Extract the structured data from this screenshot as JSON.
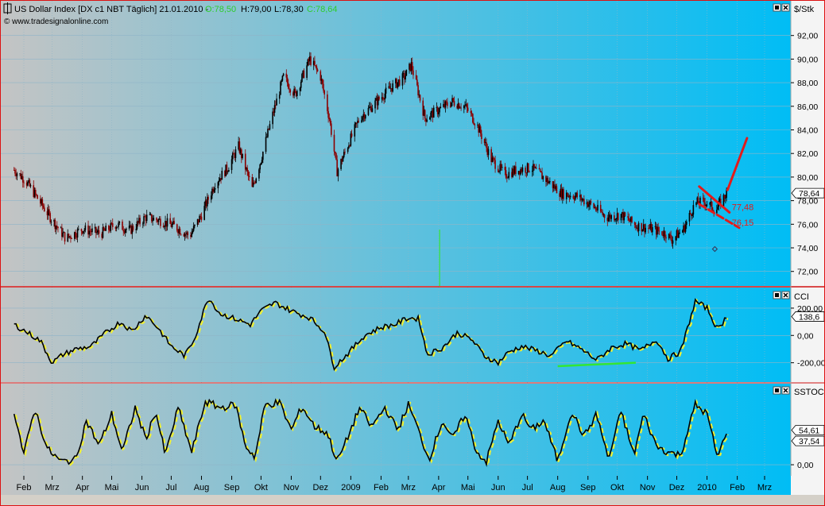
{
  "header": {
    "instrument": "US Dollar Index [DX c1 NBT  Täglich] 21.01.2010 -",
    "open": "O:78,50",
    "high": "H:79,00",
    "low": "L:78,30",
    "close": "C:78,64",
    "site": "© www.tradesignalonline.com"
  },
  "colors": {
    "panel_left": "#c4c4c4",
    "panel_right": "#00bdf5",
    "candle_up": "#000000",
    "candle_down": "#8b0000",
    "osc_line": "#000000",
    "osc_signal": "#f0f030",
    "annotation": "#e31b1b",
    "divergence": "#33e633",
    "panel_border": "#d11111",
    "grid": "#8fb5c8"
  },
  "chart_data": [
    {
      "name": "price",
      "type": "candlestick",
      "unit_label": "$/Stk",
      "ylim": [
        70.8,
        94
      ],
      "yticks": [
        72,
        74,
        76,
        78,
        80,
        82,
        84,
        86,
        88,
        90,
        92
      ],
      "ytick_labels": [
        "72,00",
        "74,00",
        "76,00",
        "78,00",
        "80,00",
        "82,00",
        "84,00",
        "86,00",
        "88,00",
        "90,00",
        "92,00"
      ],
      "last_value": 78.64,
      "last_label": "78,64",
      "close_path": [
        [
          "2008-01-22",
          80.6
        ],
        [
          "2008-02-02",
          79.8
        ],
        [
          "2008-02-15",
          78.2
        ],
        [
          "2008-02-28",
          76.6
        ],
        [
          "2008-03-15",
          74.8
        ],
        [
          "2008-04-01",
          75.6
        ],
        [
          "2008-04-20",
          75.2
        ],
        [
          "2008-05-05",
          76.0
        ],
        [
          "2008-05-20",
          75.5
        ],
        [
          "2008-06-05",
          76.6
        ],
        [
          "2008-06-20",
          76.3
        ],
        [
          "2008-07-05",
          75.8
        ],
        [
          "2008-07-20",
          75.0
        ],
        [
          "2008-08-01",
          76.8
        ],
        [
          "2008-08-15",
          79.5
        ],
        [
          "2008-08-28",
          80.8
        ],
        [
          "2008-09-08",
          82.6
        ],
        [
          "2008-09-22",
          79.0
        ],
        [
          "2008-10-01",
          81.5
        ],
        [
          "2008-10-12",
          85.0
        ],
        [
          "2008-10-24",
          88.5
        ],
        [
          "2008-11-05",
          87.0
        ],
        [
          "2008-11-20",
          90.0
        ],
        [
          "2008-12-01",
          88.5
        ],
        [
          "2008-12-10",
          85.0
        ],
        [
          "2008-12-18",
          80.5
        ],
        [
          "2008-12-28",
          82.5
        ],
        [
          "2009-01-10",
          85.0
        ],
        [
          "2009-01-25",
          86.2
        ],
        [
          "2009-02-10",
          87.5
        ],
        [
          "2009-02-25",
          88.5
        ],
        [
          "2009-03-04",
          89.5
        ],
        [
          "2009-03-18",
          85.0
        ],
        [
          "2009-03-30",
          85.6
        ],
        [
          "2009-04-15",
          86.4
        ],
        [
          "2009-04-28",
          86.0
        ],
        [
          "2009-05-10",
          84.5
        ],
        [
          "2009-05-25",
          81.5
        ],
        [
          "2009-06-08",
          80.2
        ],
        [
          "2009-06-20",
          80.6
        ],
        [
          "2009-07-05",
          80.8
        ],
        [
          "2009-07-20",
          79.8
        ],
        [
          "2009-08-05",
          78.6
        ],
        [
          "2009-08-20",
          78.4
        ],
        [
          "2009-09-05",
          77.6
        ],
        [
          "2009-09-20",
          76.6
        ],
        [
          "2009-10-05",
          76.8
        ],
        [
          "2009-10-20",
          75.9
        ],
        [
          "2009-11-05",
          75.6
        ],
        [
          "2009-11-20",
          75.2
        ],
        [
          "2009-11-26",
          74.7
        ],
        [
          "2009-12-08",
          75.6
        ],
        [
          "2009-12-20",
          77.8
        ],
        [
          "2009-12-30",
          77.9
        ],
        [
          "2010-01-10",
          77.2
        ],
        [
          "2010-01-21",
          78.64
        ]
      ],
      "annotations": [
        {
          "type": "label",
          "date": "2010-01-28",
          "value": 77.48,
          "text": "77,48"
        },
        {
          "type": "label",
          "date": "2010-01-28",
          "value": 76.15,
          "text": "76,15"
        },
        {
          "type": "trendline",
          "from": [
            "2009-12-24",
            79.2
          ],
          "to": [
            "2010-01-24",
            77.0
          ]
        },
        {
          "type": "trendline",
          "from": [
            "2009-12-24",
            77.7
          ],
          "to": [
            "2010-02-03",
            75.7
          ]
        },
        {
          "type": "trendline",
          "from": [
            "2010-01-22",
            78.9
          ],
          "to": [
            "2010-02-11",
            83.3
          ]
        },
        {
          "type": "marker",
          "date": "2010-01-09",
          "value": 73.9
        }
      ],
      "vertical_line": {
        "date": "2009-04-02"
      }
    },
    {
      "name": "cci",
      "type": "line",
      "label": "CCI",
      "ylim": [
        -330,
        310
      ],
      "yticks": [
        -200,
        0,
        200
      ],
      "ytick_labels": [
        "-200,00",
        "0,00",
        "200,00"
      ],
      "last_value": 138.6,
      "last_label": "138,6",
      "series": [
        [
          "2008-01-22",
          80
        ],
        [
          "2008-02-05",
          20
        ],
        [
          "2008-02-18",
          -40
        ],
        [
          "2008-03-01",
          -200
        ],
        [
          "2008-03-12",
          -140
        ],
        [
          "2008-03-25",
          -100
        ],
        [
          "2008-04-10",
          -80
        ],
        [
          "2008-04-25",
          20
        ],
        [
          "2008-05-10",
          100
        ],
        [
          "2008-05-22",
          30
        ],
        [
          "2008-06-05",
          150
        ],
        [
          "2008-06-18",
          50
        ],
        [
          "2008-07-01",
          -80
        ],
        [
          "2008-07-15",
          -150
        ],
        [
          "2008-07-25",
          -20
        ],
        [
          "2008-08-08",
          280
        ],
        [
          "2008-08-20",
          160
        ],
        [
          "2008-09-05",
          120
        ],
        [
          "2008-09-20",
          80
        ],
        [
          "2008-10-01",
          180
        ],
        [
          "2008-10-15",
          240
        ],
        [
          "2008-11-01",
          180
        ],
        [
          "2008-11-20",
          130
        ],
        [
          "2008-12-05",
          30
        ],
        [
          "2008-12-15",
          -230
        ],
        [
          "2008-12-28",
          -140
        ],
        [
          "2009-01-15",
          0
        ],
        [
          "2009-02-01",
          60
        ],
        [
          "2009-02-15",
          80
        ],
        [
          "2009-03-01",
          130
        ],
        [
          "2009-03-12",
          120
        ],
        [
          "2009-03-20",
          -140
        ],
        [
          "2009-04-05",
          -90
        ],
        [
          "2009-04-20",
          20
        ],
        [
          "2009-05-05",
          -30
        ],
        [
          "2009-05-18",
          -150
        ],
        [
          "2009-06-01",
          -200
        ],
        [
          "2009-06-12",
          -120
        ],
        [
          "2009-06-25",
          -80
        ],
        [
          "2009-07-10",
          -110
        ],
        [
          "2009-07-25",
          -150
        ],
        [
          "2009-08-10",
          -40
        ],
        [
          "2009-08-25",
          -100
        ],
        [
          "2009-09-10",
          -180
        ],
        [
          "2009-09-25",
          -90
        ],
        [
          "2009-10-10",
          -60
        ],
        [
          "2009-10-25",
          -110
        ],
        [
          "2009-11-10",
          -30
        ],
        [
          "2009-11-22",
          -170
        ],
        [
          "2009-12-05",
          -120
        ],
        [
          "2009-12-20",
          250
        ],
        [
          "2010-01-01",
          200
        ],
        [
          "2010-01-12",
          40
        ],
        [
          "2010-01-21",
          138
        ]
      ],
      "annotations": [
        {
          "type": "trendline",
          "from": [
            "2009-08-01",
            -225
          ],
          "to": [
            "2009-10-20",
            -200
          ]
        }
      ]
    },
    {
      "name": "sstoc",
      "type": "line",
      "label": "SSTOC",
      "ylim": [
        -15,
        118
      ],
      "yticks": [
        0
      ],
      "ytick_labels": [
        "0,00"
      ],
      "last_values": [
        {
          "value": 54.61,
          "label": "54,61"
        },
        {
          "value": 37.54,
          "label": "37,54"
        }
      ],
      "series": [
        [
          "2008-01-22",
          85
        ],
        [
          "2008-02-01",
          15
        ],
        [
          "2008-02-12",
          90
        ],
        [
          "2008-02-25",
          25
        ],
        [
          "2008-03-10",
          5
        ],
        [
          "2008-03-25",
          8
        ],
        [
          "2008-04-05",
          70
        ],
        [
          "2008-04-18",
          30
        ],
        [
          "2008-05-01",
          80
        ],
        [
          "2008-05-12",
          20
        ],
        [
          "2008-05-25",
          90
        ],
        [
          "2008-06-05",
          40
        ],
        [
          "2008-06-15",
          85
        ],
        [
          "2008-06-25",
          15
        ],
        [
          "2008-07-08",
          90
        ],
        [
          "2008-07-22",
          20
        ],
        [
          "2008-08-05",
          100
        ],
        [
          "2008-08-20",
          90
        ],
        [
          "2008-09-05",
          95
        ],
        [
          "2008-09-15",
          30
        ],
        [
          "2008-09-25",
          12
        ],
        [
          "2008-10-05",
          95
        ],
        [
          "2008-10-20",
          98
        ],
        [
          "2008-11-01",
          55
        ],
        [
          "2008-11-12",
          92
        ],
        [
          "2008-11-25",
          60
        ],
        [
          "2008-12-08",
          50
        ],
        [
          "2008-12-18",
          5
        ],
        [
          "2008-12-28",
          40
        ],
        [
          "2009-01-10",
          90
        ],
        [
          "2009-01-22",
          60
        ],
        [
          "2009-02-05",
          90
        ],
        [
          "2009-02-18",
          55
        ],
        [
          "2009-03-01",
          95
        ],
        [
          "2009-03-10",
          60
        ],
        [
          "2009-03-22",
          8
        ],
        [
          "2009-04-05",
          70
        ],
        [
          "2009-04-15",
          40
        ],
        [
          "2009-04-28",
          80
        ],
        [
          "2009-05-10",
          20
        ],
        [
          "2009-05-20",
          5
        ],
        [
          "2009-06-01",
          70
        ],
        [
          "2009-06-12",
          30
        ],
        [
          "2009-06-25",
          80
        ],
        [
          "2009-07-05",
          55
        ],
        [
          "2009-07-18",
          70
        ],
        [
          "2009-08-01",
          5
        ],
        [
          "2009-08-15",
          85
        ],
        [
          "2009-08-28",
          45
        ],
        [
          "2009-09-10",
          80
        ],
        [
          "2009-09-22",
          8
        ],
        [
          "2009-10-05",
          85
        ],
        [
          "2009-10-18",
          15
        ],
        [
          "2009-10-28",
          80
        ],
        [
          "2009-11-10",
          30
        ],
        [
          "2009-11-22",
          20
        ],
        [
          "2009-12-05",
          15
        ],
        [
          "2009-12-20",
          95
        ],
        [
          "2010-01-01",
          80
        ],
        [
          "2010-01-12",
          10
        ],
        [
          "2010-01-21",
          54
        ]
      ]
    }
  ],
  "x_axis": {
    "ticks": [
      {
        "date": "2008-02-01",
        "label": "Feb"
      },
      {
        "date": "2008-03-01",
        "label": "Mrz"
      },
      {
        "date": "2008-04-01",
        "label": "Apr"
      },
      {
        "date": "2008-05-01",
        "label": "Mai"
      },
      {
        "date": "2008-06-01",
        "label": "Jun"
      },
      {
        "date": "2008-07-01",
        "label": "Jul"
      },
      {
        "date": "2008-08-01",
        "label": "Aug"
      },
      {
        "date": "2008-09-01",
        "label": "Sep"
      },
      {
        "date": "2008-10-01",
        "label": "Okt"
      },
      {
        "date": "2008-11-01",
        "label": "Nov"
      },
      {
        "date": "2008-12-01",
        "label": "Dez"
      },
      {
        "date": "2009-01-01",
        "label": "2009"
      },
      {
        "date": "2009-02-01",
        "label": "Feb"
      },
      {
        "date": "2009-03-01",
        "label": "Mrz"
      },
      {
        "date": "2009-04-01",
        "label": "Apr"
      },
      {
        "date": "2009-05-01",
        "label": "Mai"
      },
      {
        "date": "2009-06-01",
        "label": "Jun"
      },
      {
        "date": "2009-07-01",
        "label": "Jul"
      },
      {
        "date": "2009-08-01",
        "label": "Aug"
      },
      {
        "date": "2009-09-01",
        "label": "Sep"
      },
      {
        "date": "2009-10-01",
        "label": "Okt"
      },
      {
        "date": "2009-11-01",
        "label": "Nov"
      },
      {
        "date": "2009-12-01",
        "label": "Dez"
      },
      {
        "date": "2010-01-01",
        "label": "2010"
      },
      {
        "date": "2010-02-01",
        "label": "Feb"
      },
      {
        "date": "2010-03-01",
        "label": "Mrz"
      }
    ],
    "range": [
      "2008-01-22",
      "2010-03-20"
    ]
  },
  "icons": [
    "minimize-icon",
    "close-icon",
    "chart-icon"
  ]
}
